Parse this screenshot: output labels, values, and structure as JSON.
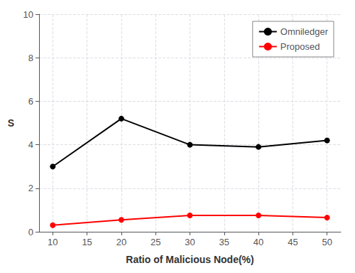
{
  "chart_data": {
    "type": "line",
    "xlabel": "Ratio of Malicious Node(%)",
    "ylabel": "S",
    "x": [
      10,
      20,
      30,
      40,
      50
    ],
    "series": [
      {
        "name": "Omniledger",
        "color": "#000000",
        "values": [
          3.0,
          5.2,
          4.0,
          3.9,
          4.2
        ]
      },
      {
        "name": "Proposed",
        "color": "#ff0000",
        "values": [
          0.3,
          0.55,
          0.75,
          0.75,
          0.65
        ]
      }
    ],
    "xlim": [
      8,
      52
    ],
    "xticks": [
      10,
      15,
      20,
      25,
      30,
      35,
      40,
      45,
      50
    ],
    "ylim": [
      0,
      10
    ],
    "yticks": [
      0,
      2,
      4,
      6,
      8,
      10
    ],
    "grid": true,
    "legend": "upper right",
    "marker": "circle"
  }
}
